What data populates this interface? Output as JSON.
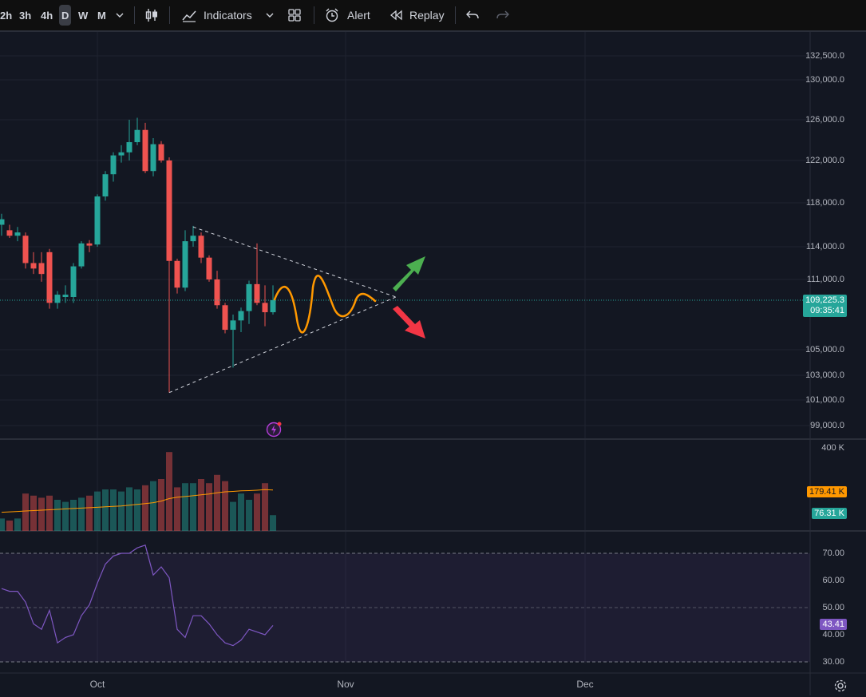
{
  "toolbar": {
    "intervals": [
      "2h",
      "3h",
      "4h",
      "D",
      "W",
      "M"
    ],
    "active_interval": "D",
    "indicators_label": "Indicators",
    "alert_label": "Alert",
    "replay_label": "Replay"
  },
  "price_axis": {
    "ticks": [
      "132,500.0",
      "130,000.0",
      "126,000.0",
      "122,000.0",
      "118,000.0",
      "114,000.0",
      "111,000.0",
      "105,000.0",
      "103,000.0",
      "101,000.0",
      "99,000.0"
    ],
    "last_price": "109,225.3",
    "countdown": "09:35:41"
  },
  "volume_axis": {
    "max_label": "400 K",
    "ma_value": "179.41 K",
    "volume_value": "76.31 K"
  },
  "rsi_axis": {
    "ticks": [
      "70.00",
      "60.00",
      "50.00",
      "40.00",
      "30.00"
    ],
    "value": "43.41"
  },
  "time_axis": {
    "labels": [
      "Oct",
      "Nov",
      "Dec"
    ]
  },
  "colors": {
    "up": "#26a69a",
    "down": "#ef5350",
    "rsi_line": "#7e57c2",
    "volume_ma": "#ff9800",
    "projection": "#ff9800",
    "arrow_up": "#4caf50",
    "arrow_down": "#f23645"
  },
  "chart_data": {
    "type": "candlestick",
    "candles_ohlc_approx": [
      {
        "o": 116000,
        "h": 117000,
        "l": 115000,
        "c": 116500
      },
      {
        "o": 115500,
        "h": 116000,
        "l": 114800,
        "c": 115000
      },
      {
        "o": 115000,
        "h": 115800,
        "l": 114500,
        "c": 115300
      },
      {
        "o": 115000,
        "h": 115300,
        "l": 112000,
        "c": 112500
      },
      {
        "o": 112500,
        "h": 113500,
        "l": 111500,
        "c": 112000
      },
      {
        "o": 112500,
        "h": 113500,
        "l": 110800,
        "c": 111500
      },
      {
        "o": 113500,
        "h": 113800,
        "l": 108500,
        "c": 109000
      },
      {
        "o": 109000,
        "h": 110000,
        "l": 108500,
        "c": 109700
      },
      {
        "o": 109500,
        "h": 110500,
        "l": 109000,
        "c": 109700
      },
      {
        "o": 109500,
        "h": 112500,
        "l": 109000,
        "c": 112200
      },
      {
        "o": 112200,
        "h": 114500,
        "l": 112000,
        "c": 114300
      },
      {
        "o": 114300,
        "h": 114600,
        "l": 113500,
        "c": 114100
      },
      {
        "o": 114200,
        "h": 118800,
        "l": 114000,
        "c": 118600
      },
      {
        "o": 118600,
        "h": 121000,
        "l": 118200,
        "c": 120700
      },
      {
        "o": 120700,
        "h": 122800,
        "l": 120000,
        "c": 122500
      },
      {
        "o": 122500,
        "h": 123500,
        "l": 121800,
        "c": 122800
      },
      {
        "o": 122800,
        "h": 126000,
        "l": 122000,
        "c": 123800
      },
      {
        "o": 123800,
        "h": 126200,
        "l": 123500,
        "c": 125000
      },
      {
        "o": 125000,
        "h": 125700,
        "l": 120800,
        "c": 121000
      },
      {
        "o": 121000,
        "h": 124200,
        "l": 120500,
        "c": 123600
      },
      {
        "o": 123600,
        "h": 123900,
        "l": 121800,
        "c": 122000
      },
      {
        "o": 122000,
        "h": 122300,
        "l": 101600,
        "c": 112700
      },
      {
        "o": 112700,
        "h": 112900,
        "l": 109800,
        "c": 110300
      },
      {
        "o": 110300,
        "h": 115500,
        "l": 110000,
        "c": 114500
      },
      {
        "o": 114500,
        "h": 115900,
        "l": 114000,
        "c": 115000
      },
      {
        "o": 115000,
        "h": 115300,
        "l": 112500,
        "c": 113000
      },
      {
        "o": 113000,
        "h": 113200,
        "l": 110800,
        "c": 111000
      },
      {
        "o": 111000,
        "h": 111800,
        "l": 108500,
        "c": 108800
      },
      {
        "o": 108800,
        "h": 109000,
        "l": 106400,
        "c": 106700
      },
      {
        "o": 106700,
        "h": 108000,
        "l": 103600,
        "c": 107500
      },
      {
        "o": 107500,
        "h": 108600,
        "l": 106500,
        "c": 108300
      },
      {
        "o": 108300,
        "h": 110900,
        "l": 107200,
        "c": 110600
      },
      {
        "o": 110600,
        "h": 114300,
        "l": 108800,
        "c": 109000
      },
      {
        "o": 109000,
        "h": 110500,
        "l": 107000,
        "c": 108200
      },
      {
        "o": 108200,
        "h": 110500,
        "l": 108000,
        "c": 109225
      }
    ],
    "volume_approx_k": [
      60,
      50,
      60,
      180,
      170,
      160,
      170,
      150,
      140,
      150,
      160,
      170,
      190,
      200,
      200,
      190,
      210,
      200,
      220,
      240,
      250,
      380,
      210,
      230,
      230,
      250,
      230,
      270,
      240,
      140,
      180,
      150,
      180,
      230,
      76
    ],
    "rsi_approx": [
      57,
      56,
      56,
      52,
      44,
      42,
      49,
      37,
      39,
      40,
      47,
      51,
      59,
      66,
      69,
      70,
      70,
      72,
      73,
      62,
      65,
      61,
      42,
      39,
      47,
      47,
      44,
      40,
      37,
      36,
      38,
      42,
      41,
      40,
      43.41
    ],
    "ylim": [
      98500,
      133500
    ],
    "annotations": {
      "triangle": {
        "upper_from": {
          "bar": 24,
          "price": 115800
        },
        "lower_from": {
          "bar": 21,
          "price": 101600
        },
        "apex": {
          "bar_offset": 28,
          "price": 109500
        }
      }
    }
  }
}
